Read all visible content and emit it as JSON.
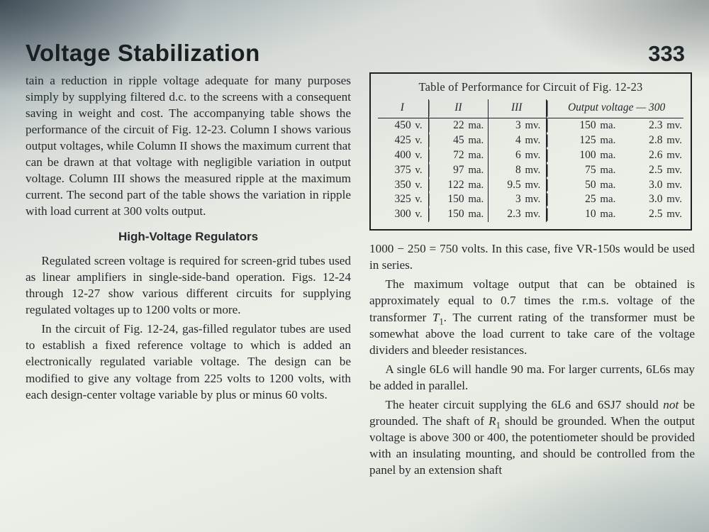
{
  "header": {
    "title": "Voltage Stabilization",
    "page_number": "333"
  },
  "left_column": {
    "para1": "tain a reduction in ripple voltage adequate for many purposes simply by supplying filtered d.c. to the screens with a consequent saving in weight and cost. The accompanying table shows the performance of the circuit of Fig. 12-23. Column I shows various output voltages, while Column II shows the maximum current that can be drawn at that voltage with negligible variation in output voltage. Column III shows the measured ripple at the maximum current. The second part of the table shows the variation in ripple with load current at 300 volts output.",
    "subhead": "High-Voltage Regulators",
    "para2": "Regulated screen voltage is required for screen-grid tubes used as linear amplifiers in single-side-band operation. Figs. 12-24 through 12-27 show various different circuits for supplying regulated voltages up to 1200 volts or more.",
    "para3": "In the circuit of Fig. 12-24, gas-filled regulator tubes are used to establish a fixed reference voltage to which is added an electronically regulated variable voltage. The design can be modified to give any voltage from 225 volts to 1200 volts, with each design-center voltage variable by plus or minus 60 volts."
  },
  "table": {
    "title": "Table of Performance for Circuit of Fig. 12-23",
    "headers": {
      "c1": "I",
      "c2": "II",
      "c3": "III",
      "c45": "Output voltage — 300"
    },
    "rows": [
      {
        "v": "450",
        "ma": "22",
        "mv": "3",
        "out_ma": "150",
        "out_mv": "2.3"
      },
      {
        "v": "425",
        "ma": "45",
        "mv": "4",
        "out_ma": "125",
        "out_mv": "2.8"
      },
      {
        "v": "400",
        "ma": "72",
        "mv": "6",
        "out_ma": "100",
        "out_mv": "2.6"
      },
      {
        "v": "375",
        "ma": "97",
        "mv": "8",
        "out_ma": "75",
        "out_mv": "2.5"
      },
      {
        "v": "350",
        "ma": "122",
        "mv": "9.5",
        "out_ma": "50",
        "out_mv": "3.0"
      },
      {
        "v": "325",
        "ma": "150",
        "mv": "3",
        "out_ma": "25",
        "out_mv": "3.0"
      },
      {
        "v": "300",
        "ma": "150",
        "mv": "2.3",
        "out_ma": "10",
        "out_mv": "2.5"
      }
    ],
    "units": {
      "v": "v.",
      "ma": "ma.",
      "mv": "mv."
    }
  },
  "right_column": {
    "para1a": "1000 − 250 = 750 volts. In this case, five VR-150s would be used in series.",
    "para2a": "The maximum voltage output that can be obtained is approximately equal to 0.7 times the r.m.s. voltage of the transformer ",
    "para2_T": "T",
    "para2_sub": "1",
    "para2b": ". The current rating of the transformer must be somewhat above the load current to take care of the voltage dividers and bleeder resistances.",
    "para3": "A single 6L6 will handle 90 ma. For larger currents, 6L6s may be added in parallel.",
    "para4a": "The heater circuit supplying the 6L6 and 6SJ7 should ",
    "para4_em": "not",
    "para4b": " be grounded. The shaft of ",
    "para4_R": "R",
    "para4_sub": "1",
    "para4c": " should be grounded. When the output voltage is above 300 or 400, the potentiometer should be provided with an insulating mounting, and should be controlled from the panel by an extension shaft"
  },
  "style": {
    "body_font_pt": 12,
    "title_font_pt": 24,
    "text_color": "#26292c",
    "rule_color": "#202326",
    "page_bg": "#e8ebe4"
  }
}
